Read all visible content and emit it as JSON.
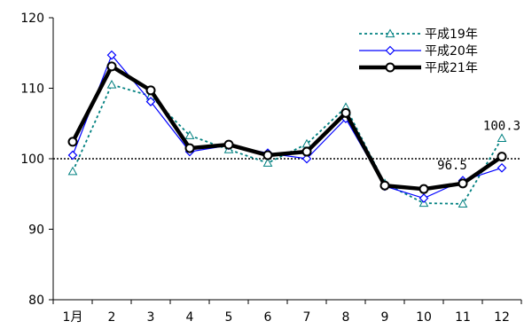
{
  "chart_data": {
    "type": "line",
    "title": "",
    "xlabel": "",
    "ylabel": "",
    "categories": [
      "1月",
      "2",
      "3",
      "4",
      "5",
      "6",
      "7",
      "8",
      "9",
      "10",
      "11",
      "12"
    ],
    "ylim": [
      80,
      120
    ],
    "yticks": [
      80,
      90,
      100,
      110,
      120
    ],
    "reference_line": 100,
    "grid": false,
    "legend_position": "top-right",
    "series": [
      {
        "name": "平成19年",
        "values": [
          98.2,
          110.5,
          108.9,
          103.3,
          101.3,
          99.4,
          102.1,
          107.3,
          96.5,
          93.7,
          93.6,
          102.9
        ],
        "color": "#008080",
        "style": "dotted",
        "marker": "triangle"
      },
      {
        "name": "平成20年",
        "values": [
          100.5,
          114.7,
          108.1,
          101.0,
          101.9,
          100.8,
          100.0,
          105.7,
          96.1,
          94.4,
          96.9,
          98.7
        ],
        "color": "#0000ff",
        "style": "solid",
        "marker": "diamond"
      },
      {
        "name": "平成21年",
        "values": [
          102.4,
          113.1,
          109.7,
          101.5,
          102.0,
          100.5,
          101.0,
          106.5,
          96.2,
          95.7,
          96.5,
          100.3
        ],
        "color": "#000000",
        "style": "thick",
        "marker": "circle"
      }
    ],
    "annotations": [
      {
        "text": "100.3",
        "category": "12",
        "series": "平成21年"
      },
      {
        "text": "96.5",
        "category": "11",
        "series": "平成21年"
      }
    ]
  }
}
